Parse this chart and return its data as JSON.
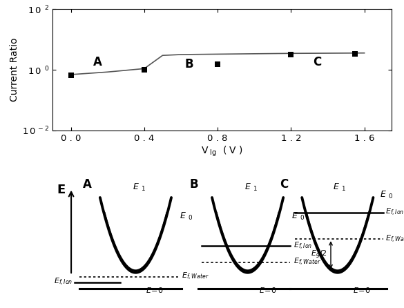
{
  "top_plot": {
    "line_x": [
      0.0,
      0.2,
      0.4,
      0.5,
      0.6,
      0.8,
      1.0,
      1.2,
      1.4,
      1.6
    ],
    "line_y": [
      0.7,
      0.85,
      1.1,
      3.0,
      3.2,
      3.3,
      3.4,
      3.5,
      3.55,
      3.6
    ],
    "scatter_x": [
      0.0,
      0.4,
      0.8,
      1.2,
      1.55
    ],
    "scatter_y": [
      0.65,
      1.0,
      1.5,
      3.2,
      3.4
    ],
    "ylabel": "Current Ratio",
    "xlim": [
      -0.1,
      1.75
    ],
    "ylim_low": -2,
    "ylim_high": 2,
    "xticks": [
      0.0,
      0.4,
      0.8,
      1.2,
      1.6
    ],
    "xtick_labels": [
      "0 . 0",
      "0 . 4",
      "0 . 8",
      "1 . 2",
      "1 . 6"
    ],
    "ytick_vals": [
      0.01,
      1.0,
      100.0
    ],
    "ytick_labels": [
      "1 0  -2",
      "1 0  0",
      "1 0  2"
    ],
    "label_A": [
      0.12,
      1.8
    ],
    "label_B": [
      0.62,
      1.5
    ],
    "label_C": [
      1.32,
      1.8
    ]
  }
}
